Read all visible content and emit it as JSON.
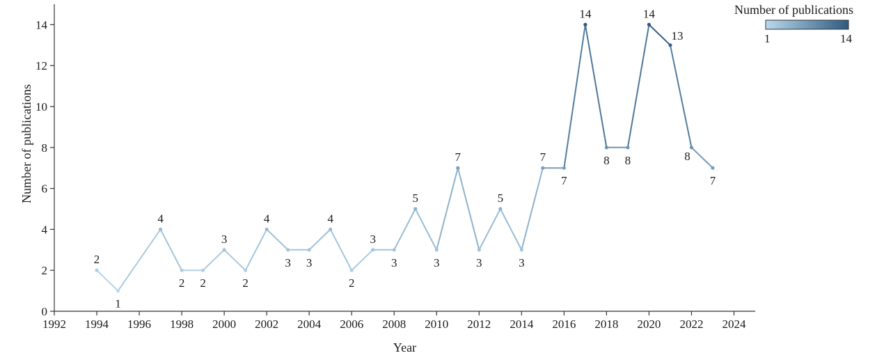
{
  "chart_data": {
    "type": "line",
    "xlabel": "Year",
    "ylabel": "Number of publications",
    "xlim": [
      1992,
      2025
    ],
    "ylim": [
      0,
      15
    ],
    "x_ticks": [
      1992,
      1994,
      1996,
      1998,
      2000,
      2002,
      2004,
      2006,
      2008,
      2010,
      2012,
      2014,
      2016,
      2018,
      2020,
      2022,
      2024
    ],
    "y_ticks": [
      0,
      2,
      4,
      6,
      8,
      10,
      12,
      14
    ],
    "grid": false,
    "points": [
      {
        "x": 1994,
        "y": 2,
        "label": "2",
        "label_pos": "above"
      },
      {
        "x": 1995,
        "y": 1,
        "label": "1",
        "label_pos": "below"
      },
      {
        "x": 1997,
        "y": 4,
        "label": "4",
        "label_pos": "above"
      },
      {
        "x": 1998,
        "y": 2,
        "label": "2",
        "label_pos": "below"
      },
      {
        "x": 1999,
        "y": 2,
        "label": "2",
        "label_pos": "below"
      },
      {
        "x": 2000,
        "y": 3,
        "label": "3",
        "label_pos": "above"
      },
      {
        "x": 2001,
        "y": 2,
        "label": "2",
        "label_pos": "below"
      },
      {
        "x": 2002,
        "y": 4,
        "label": "4",
        "label_pos": "above"
      },
      {
        "x": 2003,
        "y": 3,
        "label": "3",
        "label_pos": "below"
      },
      {
        "x": 2004,
        "y": 3,
        "label": "3",
        "label_pos": "below"
      },
      {
        "x": 2005,
        "y": 4,
        "label": "4",
        "label_pos": "above"
      },
      {
        "x": 2006,
        "y": 2,
        "label": "2",
        "label_pos": "below"
      },
      {
        "x": 2007,
        "y": 3,
        "label": "3",
        "label_pos": "above"
      },
      {
        "x": 2008,
        "y": 3,
        "label": "3",
        "label_pos": "below"
      },
      {
        "x": 2009,
        "y": 5,
        "label": "5",
        "label_pos": "above"
      },
      {
        "x": 2010,
        "y": 3,
        "label": "3",
        "label_pos": "below"
      },
      {
        "x": 2011,
        "y": 7,
        "label": "7",
        "label_pos": "above"
      },
      {
        "x": 2012,
        "y": 3,
        "label": "3",
        "label_pos": "below"
      },
      {
        "x": 2013,
        "y": 5,
        "label": "5",
        "label_pos": "above"
      },
      {
        "x": 2014,
        "y": 3,
        "label": "3",
        "label_pos": "below"
      },
      {
        "x": 2015,
        "y": 7,
        "label": "7",
        "label_pos": "above"
      },
      {
        "x": 2016,
        "y": 7,
        "label": "7",
        "label_pos": "below"
      },
      {
        "x": 2017,
        "y": 14,
        "label": "14",
        "label_pos": "above"
      },
      {
        "x": 2018,
        "y": 8,
        "label": "8",
        "label_pos": "below"
      },
      {
        "x": 2019,
        "y": 8,
        "label": "8",
        "label_pos": "below"
      },
      {
        "x": 2020,
        "y": 14,
        "label": "14",
        "label_pos": "above"
      },
      {
        "x": 2021,
        "y": 13,
        "label": "13",
        "label_pos": "above-right"
      },
      {
        "x": 2022,
        "y": 8,
        "label": "8",
        "label_pos": "below-left"
      },
      {
        "x": 2023,
        "y": 7,
        "label": "7",
        "label_pos": "below"
      }
    ],
    "colorbar": {
      "title": "Number of publications",
      "min": 1,
      "max": 14,
      "min_label": "1",
      "max_label": "14",
      "color_low": "#b9d9ec",
      "color_high": "#2e5a80",
      "placement": "top-right"
    }
  }
}
